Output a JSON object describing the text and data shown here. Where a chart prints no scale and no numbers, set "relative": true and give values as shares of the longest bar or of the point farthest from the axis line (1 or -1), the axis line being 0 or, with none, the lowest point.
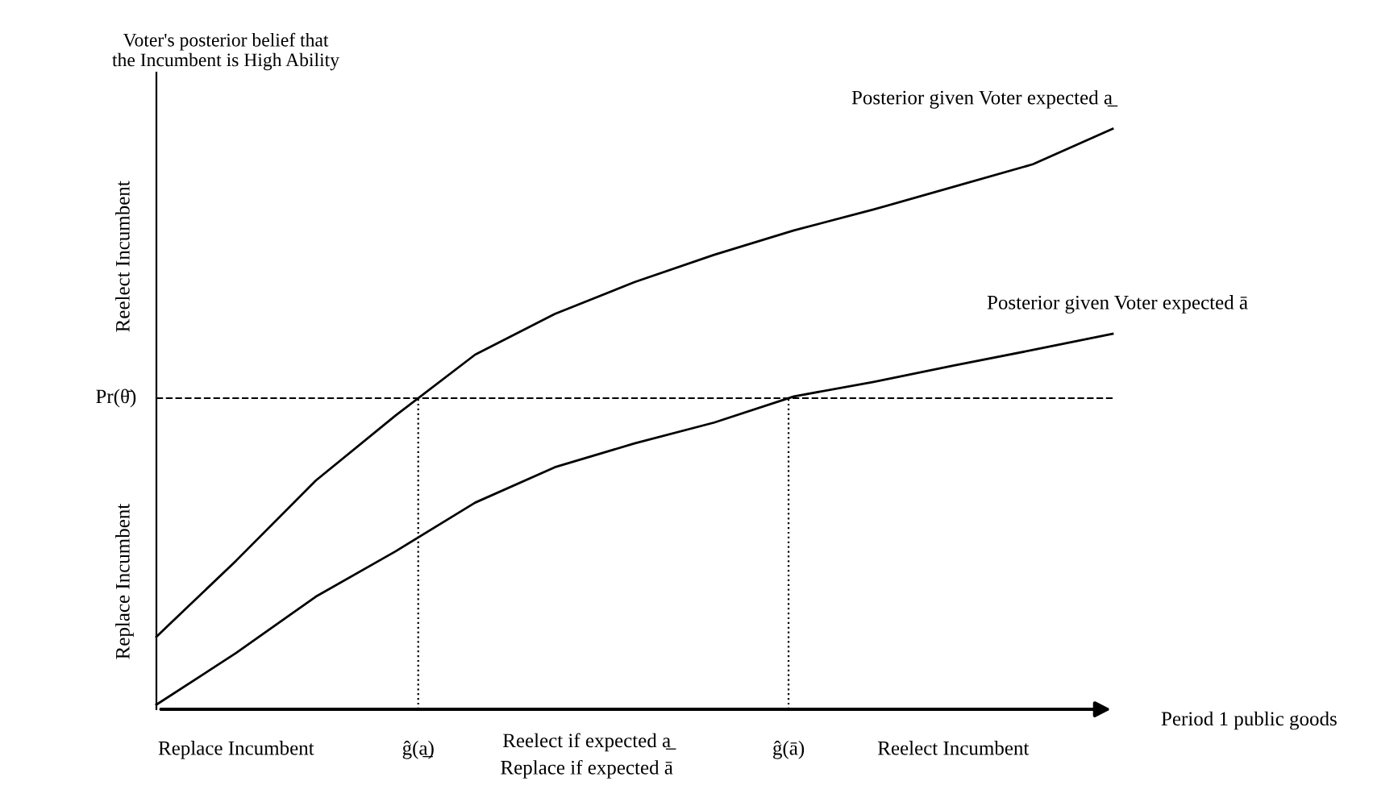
{
  "chart_data": {
    "type": "line",
    "relative": true,
    "title": "Voter's posterior belief that\nthe Incumbent is High Ability",
    "xlabel": "Period 1 public goods",
    "categories": [
      null,
      null,
      null,
      null,
      null,
      null,
      null,
      null,
      null,
      null,
      null,
      null,
      null
    ],
    "series": [
      {
        "name": "Posterior given Voter expected a̲",
        "color": "#000000",
        "values": [
          0.125,
          0.256,
          0.394,
          0.506,
          0.611,
          0.681,
          0.736,
          0.783,
          0.825,
          0.861,
          0.9,
          0.939,
          1
        ]
      },
      {
        "name": "Posterior given Voter expected ā",
        "color": "#000000",
        "values": [
          0.008,
          0.097,
          0.194,
          0.272,
          0.356,
          0.417,
          0.458,
          0.494,
          0.539,
          0.564,
          0.592,
          0.619,
          0.647
        ]
      }
    ],
    "ref_lines": [
      {
        "axis": "y",
        "value": 0.536,
        "label": "Pr(θ̄)",
        "line_style": "dashed",
        "color": "#000000"
      }
    ],
    "annotations": [
      "Reelect Incumbent",
      "Replace Incumbent",
      "Replace Incumbent",
      "Reelect if expected a̲\nReplace if expected ā",
      "Reelect Incumbent",
      "ĝ(a̲)",
      "ĝ(ā)"
    ],
    "marker": "none",
    "line_style": "solid",
    "grid": false
  }
}
